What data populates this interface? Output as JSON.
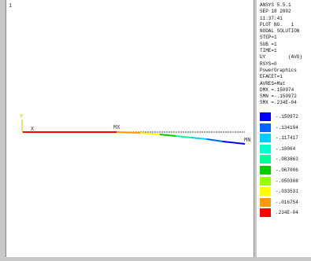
{
  "plot": {
    "window_number": "1",
    "labels": {
      "y_axis": "Y",
      "x_axis": "X",
      "max": "MX",
      "min": "MN"
    }
  },
  "info": {
    "lines": [
      "ANSYS 5.5.1",
      "SEP 18 2002",
      "11:37:41",
      "PLOT NO.   1",
      "NODAL SOLUTION",
      "STEP=1",
      "SUB =1",
      "TIME=1",
      "UY        (AVG)",
      "RSYS=0",
      "PowerGraphics",
      "EFACET=1",
      "AVRES=Mat",
      "DMX =.150974",
      "SMN =-.150972",
      "SMX =.234E-04"
    ]
  },
  "legend": {
    "entries": [
      {
        "label": "-.150972",
        "color": "#0000ff"
      },
      {
        "label": "-.134194",
        "color": "#0066ff"
      },
      {
        "label": "-.117417",
        "color": "#00ccff"
      },
      {
        "label": "-.10064",
        "color": "#00ffcc"
      },
      {
        "label": "-.083863",
        "color": "#00ff99"
      },
      {
        "label": "-.067086",
        "color": "#00cc00"
      },
      {
        "label": "-.050308",
        "color": "#99ff00"
      },
      {
        "label": "-.033531",
        "color": "#ffff00"
      },
      {
        "label": "-.016754",
        "color": "#ff9900"
      },
      {
        "label": ".234E-04",
        "color": "#ff0000"
      }
    ]
  }
}
